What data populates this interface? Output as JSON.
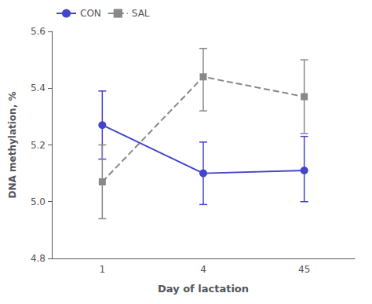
{
  "chart_data": {
    "type": "line",
    "categories": [
      "1",
      "4",
      "45"
    ],
    "series": [
      {
        "name": "CON",
        "color": "#4444cc",
        "marker": "circle",
        "line_style": "solid",
        "values": [
          5.27,
          5.1,
          5.11
        ],
        "yerr_lower": [
          0.12,
          0.11,
          0.11
        ],
        "yerr_upper": [
          0.12,
          0.11,
          0.12
        ]
      },
      {
        "name": "SAL",
        "color": "#888888",
        "marker": "square",
        "line_style": "dashed",
        "values": [
          5.07,
          5.44,
          5.37
        ],
        "yerr_lower": [
          0.13,
          0.12,
          0.13
        ],
        "yerr_upper": [
          0.13,
          0.1,
          0.13
        ]
      }
    ],
    "xlabel": "Day of lactation",
    "ylabel": "DNA methylation, %",
    "ylim": [
      4.8,
      5.6
    ],
    "yticks": [
      4.8,
      {
        "value": 5.0,
        "label": "5.0"
      },
      5.2,
      5.4,
      5.6
    ],
    "grid": false,
    "legend": "upper left"
  }
}
